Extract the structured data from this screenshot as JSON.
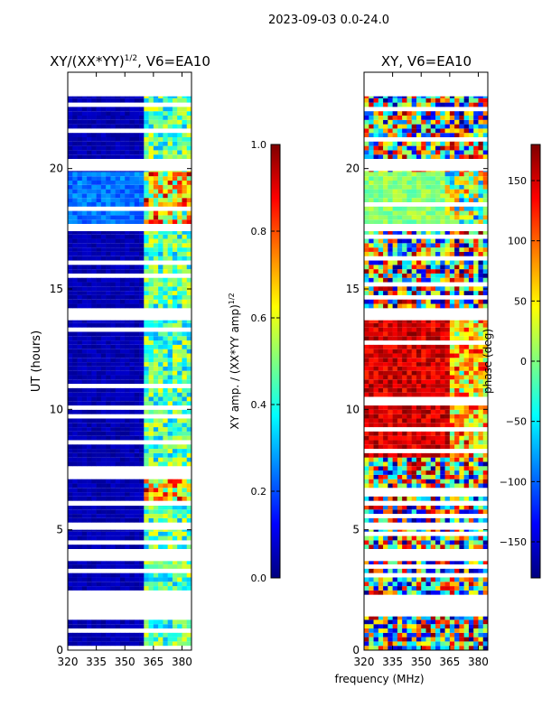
{
  "suptitle": "2023-09-03 0.0-24.0",
  "colors": {
    "jet": [
      "#00007f",
      "#0000ff",
      "#007fff",
      "#00ffff",
      "#7fff7f",
      "#ffff00",
      "#ff7f00",
      "#ff0000",
      "#7f0000"
    ],
    "gap": "#ffffff",
    "frame": "#000000"
  },
  "chart_data": [
    {
      "type": "heatmap",
      "title": "XY/(XX*YY)",
      "title_exponent": "1/2",
      "title_suffix": ", V6=EA10",
      "xlabel": "",
      "ylabel": "UT (hours)",
      "xlim": [
        320,
        385
      ],
      "ylim": [
        0,
        24
      ],
      "xticks": [
        "320",
        "335",
        "350",
        "365",
        "380"
      ],
      "yticks": [
        "0",
        "5",
        "10",
        "15",
        "20"
      ],
      "colorbar": {
        "label": "XY amp. / (XX*YY amp)",
        "label_exponent": "1/2",
        "range": [
          0.0,
          1.0
        ],
        "ticks": [
          "0.0",
          "0.2",
          "0.4",
          "0.6",
          "0.8",
          "1.0"
        ]
      },
      "data_blocks_hours": [
        [
          0.0,
          1.4
        ],
        [
          2.3,
          3.7
        ],
        [
          4.2,
          5.0
        ],
        [
          5.3,
          6.0
        ],
        [
          6.2,
          13.7
        ],
        [
          14.2,
          17.4
        ],
        [
          17.7,
          19.9
        ],
        [
          20.4,
          23.0
        ]
      ],
      "band_notes": "low amplitude (~0.05) below ~361 MHz, high variable amplitude (0.3-0.9) from ~362 to 380 MHz; brighter patch 18-20 h"
    },
    {
      "type": "heatmap",
      "title": "XY, V6=EA10",
      "xlabel": "frequency (MHz)",
      "ylabel": "",
      "xlim": [
        320,
        385
      ],
      "ylim": [
        0,
        24
      ],
      "xticks": [
        "320",
        "335",
        "350",
        "365",
        "380"
      ],
      "yticks": [
        "0",
        "5",
        "10",
        "15",
        "20"
      ],
      "colorbar": {
        "label": "phase (deg)",
        "range": [
          -180,
          180
        ],
        "ticks": [
          "−150",
          "−100",
          "−50",
          "0",
          "50",
          "100",
          "150"
        ]
      },
      "data_blocks_hours": [
        [
          0.0,
          1.4
        ],
        [
          2.3,
          3.7
        ],
        [
          4.2,
          5.0
        ],
        [
          5.3,
          6.0
        ],
        [
          6.2,
          13.7
        ],
        [
          14.2,
          17.4
        ],
        [
          17.7,
          19.9
        ],
        [
          20.4,
          23.0
        ]
      ],
      "band_notes": "phase near +150 deg between 8 and 14 h, mixed phases elsewhere"
    }
  ]
}
